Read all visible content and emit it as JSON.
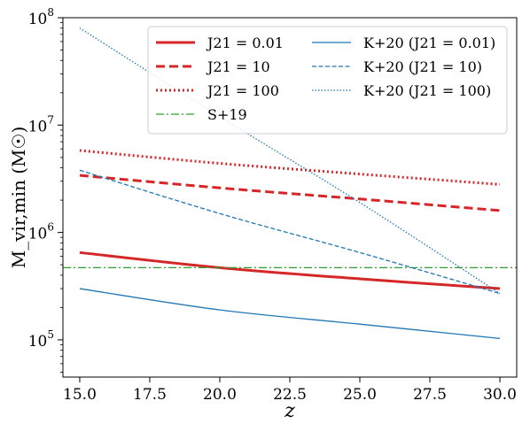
{
  "chart_data": {
    "type": "line",
    "xlabel": "z",
    "ylabel": "M_vir,min (M☉)",
    "xlim": [
      14.4,
      30.6
    ],
    "ylim": [
      45000,
      100000000
    ],
    "yscale": "log",
    "x_ticks": [
      {
        "value": 15.0,
        "label": "15.0"
      },
      {
        "value": 17.5,
        "label": "17.5"
      },
      {
        "value": 20.0,
        "label": "20.0"
      },
      {
        "value": 22.5,
        "label": "22.5"
      },
      {
        "value": 25.0,
        "label": "25.0"
      },
      {
        "value": 27.5,
        "label": "27.5"
      },
      {
        "value": 30.0,
        "label": "30.0"
      }
    ],
    "y_ticks": [
      {
        "value": 100000,
        "exp": "5"
      },
      {
        "value": 1000000,
        "exp": "6"
      },
      {
        "value": 10000000,
        "exp": "7"
      },
      {
        "value": 100000000,
        "exp": "8"
      }
    ],
    "grid": false,
    "legend_position": "top-right",
    "series": [
      {
        "name": "J21 = 0.01",
        "color": "#d62728",
        "style": "solid",
        "width": 3,
        "x": [
          15,
          20,
          25,
          30
        ],
        "y": [
          650000,
          470000,
          370000,
          300000
        ]
      },
      {
        "name": "J21 = 10",
        "color": "#d62728",
        "style": "dashed",
        "width": 3,
        "x": [
          15,
          20,
          25,
          30
        ],
        "y": [
          3400000,
          2600000,
          2050000,
          1600000
        ]
      },
      {
        "name": "J21 = 100",
        "color": "#d62728",
        "style": "dotted",
        "width": 3,
        "x": [
          15,
          20,
          25,
          30
        ],
        "y": [
          5800000,
          4400000,
          3500000,
          2800000
        ]
      },
      {
        "name": "S+19",
        "color": "#2ca02c",
        "style": "dashdot",
        "width": 1.3,
        "x": [
          14.4,
          30.6
        ],
        "y": [
          470000,
          470000
        ]
      },
      {
        "name": "K+20 (J21 = 0.01)",
        "color": "#1f77b4",
        "style": "solid",
        "width": 1.3,
        "x": [
          15,
          20,
          25,
          30
        ],
        "y": [
          300000,
          190000,
          140000,
          103000
        ]
      },
      {
        "name": "K+20 (J21 = 10)",
        "color": "#1f77b4",
        "style": "dashed",
        "width": 1.3,
        "x": [
          15,
          20,
          25,
          30
        ],
        "y": [
          3800000,
          1500000,
          650000,
          270000
        ]
      },
      {
        "name": "K+20 (J21 = 100)",
        "color": "#1f77b4",
        "style": "dotted",
        "width": 1.3,
        "x": [
          15,
          20,
          25,
          30
        ],
        "y": [
          80000000,
          12000000,
          1900000,
          270000
        ]
      }
    ],
    "legend": [
      {
        "series": 0,
        "text": "J21 = 0.01"
      },
      {
        "series": 1,
        "text": "J21 = 10"
      },
      {
        "series": 2,
        "text": "J21 = 100"
      },
      {
        "series": 3,
        "text": "S+19"
      },
      {
        "series": 4,
        "text": "K+20 (J21 = 0.01)"
      },
      {
        "series": 5,
        "text": "K+20 (J21 = 10)"
      },
      {
        "series": 6,
        "text": "K+20 (J21 = 100)"
      }
    ]
  }
}
